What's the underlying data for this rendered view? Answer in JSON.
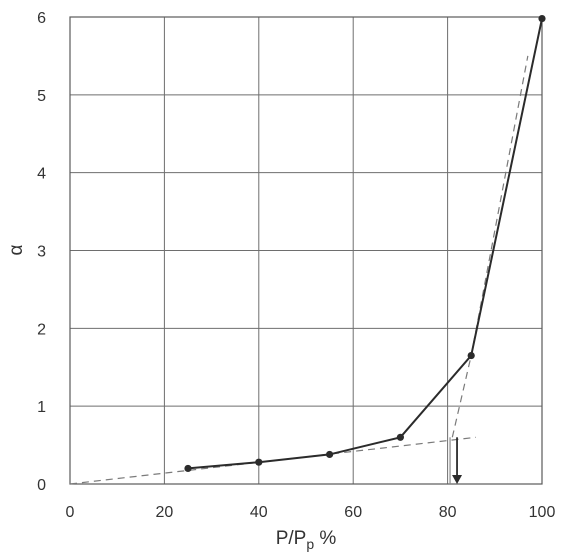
{
  "chart_data": {
    "type": "line",
    "title": "",
    "xlabel_main": "P/P",
    "xlabel_sub": "p",
    "xlabel_unit": " %",
    "ylabel": "α",
    "xlim": [
      0,
      100
    ],
    "ylim": [
      0,
      6
    ],
    "xticks": [
      "0",
      "20",
      "40",
      "60",
      "80",
      "100"
    ],
    "yticks": [
      "0",
      "1",
      "2",
      "3",
      "4",
      "5",
      "6"
    ],
    "grid": true,
    "series": [
      {
        "x": [
          25,
          40,
          55,
          70,
          85,
          100
        ],
        "y": [
          0.2,
          0.28,
          0.38,
          0.6,
          1.65,
          5.98
        ]
      }
    ],
    "tangent_lines": [
      {
        "points": [
          [
            0,
            0
          ],
          [
            86,
            0.6
          ]
        ]
      },
      {
        "points": [
          [
            81,
            0.6
          ],
          [
            85,
            1.65
          ],
          [
            97,
            5.5
          ]
        ]
      }
    ],
    "intersection_marker": {
      "x": 82,
      "y_from": 0.6,
      "y_to": 0
    }
  }
}
